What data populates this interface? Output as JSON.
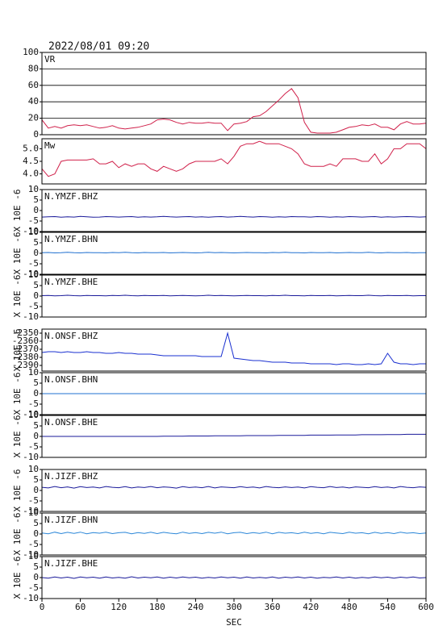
{
  "chart_data": {
    "type": "line",
    "title": "2022/08/01 09:20",
    "xlabel": "SEC",
    "x": [
      0,
      10,
      20,
      30,
      40,
      50,
      60,
      70,
      80,
      90,
      100,
      110,
      120,
      130,
      140,
      150,
      160,
      170,
      180,
      190,
      200,
      210,
      220,
      230,
      240,
      250,
      260,
      270,
      280,
      290,
      300,
      310,
      320,
      330,
      340,
      350,
      360,
      370,
      380,
      390,
      400,
      410,
      420,
      430,
      440,
      450,
      460,
      470,
      480,
      490,
      500,
      510,
      520,
      530,
      540,
      550,
      560,
      570,
      580,
      590,
      600
    ],
    "xlim": [
      0,
      600
    ],
    "xticks": [
      0,
      60,
      120,
      180,
      240,
      300,
      360,
      420,
      480,
      540,
      600
    ],
    "panels": [
      {
        "ylim": [
          0,
          100
        ],
        "yticks": [
          0,
          20,
          40,
          60,
          80,
          100
        ],
        "grid": true,
        "series": [
          {
            "name": "VR",
            "color": "#d0204a",
            "values": [
              18,
              8,
              10,
              8,
              11,
              12,
              11,
              12,
              10,
              8,
              9,
              11,
              8,
              7,
              8,
              9,
              11,
              13,
              18,
              19,
              18,
              15,
              13,
              15,
              14,
              14,
              15,
              14,
              14,
              5,
              13,
              14,
              16,
              22,
              23,
              28,
              35,
              42,
              50,
              56,
              45,
              15,
              3,
              2,
              2,
              2,
              3,
              6,
              9,
              10,
              12,
              11,
              13,
              9,
              9,
              6,
              13,
              16,
              13,
              13,
              14
            ]
          }
        ]
      },
      {
        "ylim": [
          3.6,
          5.4
        ],
        "yticks": [
          {
            "value": 4,
            "label": "4.0"
          },
          {
            "value": 4.5,
            "label": "4.5"
          },
          {
            "value": 5,
            "label": "5.0"
          }
        ],
        "grid": false,
        "series": [
          {
            "name": "Mw",
            "color": "#d0204a",
            "values": [
              4.2,
              3.9,
              4.0,
              4.5,
              4.55,
              4.55,
              4.55,
              4.55,
              4.6,
              4.4,
              4.4,
              4.5,
              4.25,
              4.4,
              4.3,
              4.4,
              4.4,
              4.2,
              4.1,
              4.3,
              4.2,
              4.1,
              4.2,
              4.4,
              4.5,
              4.5,
              4.5,
              4.5,
              4.6,
              4.4,
              4.7,
              5.1,
              5.2,
              5.2,
              5.3,
              5.2,
              5.2,
              5.2,
              5.1,
              5.0,
              4.8,
              4.4,
              4.3,
              4.3,
              4.3,
              4.4,
              4.3,
              4.6,
              4.6,
              4.6,
              4.5,
              4.5,
              4.8,
              4.4,
              4.6,
              5.0,
              5.0,
              5.2,
              5.2,
              5.2,
              5.0
            ]
          }
        ]
      },
      {
        "ylim": [
          -10,
          10
        ],
        "yticks": [
          -10,
          -5,
          0,
          5,
          10
        ],
        "ylabel": "X 10E -6",
        "grid": false,
        "series": [
          {
            "name": "N.YMZF.BHZ",
            "color": "#1a1a9a",
            "values": [
              -3.1,
              -3.0,
              -2.9,
              -3.2,
              -3.0,
              -3.1,
              -2.8,
              -3.0,
              -3.2,
              -3.1,
              -2.9,
              -3.0,
              -3.1,
              -3.0,
              -2.9,
              -3.2,
              -3.0,
              -3.1,
              -3.0,
              -2.8,
              -3.0,
              -3.1,
              -3.0,
              -2.9,
              -3.1,
              -3.0,
              -3.2,
              -3.0,
              -2.9,
              -3.1,
              -3.0,
              -2.8,
              -3.0,
              -3.1,
              -2.9,
              -3.0,
              -3.2,
              -3.0,
              -3.1,
              -2.9,
              -3.0,
              -3.0,
              -3.1,
              -2.9,
              -3.0,
              -3.2,
              -3.0,
              -3.1,
              -2.9,
              -3.0,
              -3.1,
              -3.0,
              -2.9,
              -3.2,
              -3.0,
              -3.1,
              -3.0,
              -2.9,
              -3.0,
              -3.1,
              -3.0
            ]
          }
        ]
      },
      {
        "ylim": [
          -10,
          10
        ],
        "yticks": [
          -10,
          -5,
          0,
          5,
          10
        ],
        "ylabel": "X 10E -6",
        "grid": false,
        "series": [
          {
            "name": "N.YMZF.BHN",
            "color": "#2070d0",
            "values": [
              0.3,
              0.4,
              0.2,
              0.3,
              0.5,
              0.3,
              0.2,
              0.4,
              0.3,
              0.3,
              0.2,
              0.4,
              0.3,
              0.5,
              0.3,
              0.2,
              0.4,
              0.3,
              0.3,
              0.4,
              0.2,
              0.3,
              0.4,
              0.3,
              0.2,
              0.3,
              0.5,
              0.3,
              0.4,
              0.3,
              0.2,
              0.3,
              0.4,
              0.3,
              0.3,
              0.2,
              0.4,
              0.3,
              0.5,
              0.3,
              0.3,
              0.2,
              0.4,
              0.3,
              0.3,
              0.4,
              0.2,
              0.3,
              0.4,
              0.3,
              0.3,
              0.5,
              0.3,
              0.2,
              0.4,
              0.3,
              0.3,
              0.4,
              0.2,
              0.3,
              0.3
            ]
          }
        ]
      },
      {
        "ylim": [
          -10,
          10
        ],
        "yticks": [
          -10,
          -5,
          0,
          5,
          10
        ],
        "ylabel": "X 10E -6",
        "grid": false,
        "series": [
          {
            "name": "N.YMZF.BHE",
            "color": "#1a1a9a",
            "values": [
              0.2,
              0.3,
              0.1,
              0.2,
              0.4,
              0.2,
              0.1,
              0.3,
              0.2,
              0.2,
              0.1,
              0.3,
              0.2,
              0.4,
              0.2,
              0.1,
              0.3,
              0.2,
              0.2,
              0.3,
              0.1,
              0.2,
              0.3,
              0.2,
              0.1,
              0.2,
              0.4,
              0.2,
              0.3,
              0.2,
              0.1,
              0.2,
              0.3,
              0.2,
              0.2,
              0.1,
              0.3,
              0.2,
              0.4,
              0.2,
              0.2,
              0.1,
              0.3,
              0.2,
              0.2,
              0.3,
              0.1,
              0.2,
              0.3,
              0.2,
              0.2,
              0.4,
              0.2,
              0.1,
              0.3,
              0.2,
              0.2,
              0.3,
              0.1,
              0.2,
              0.2
            ]
          }
        ]
      },
      {
        "ylim": [
          -2397,
          -2345
        ],
        "yticks": [
          -2390,
          -2380,
          -2370,
          -2360,
          -2350
        ],
        "ylabel": "X 10E -6",
        "grid": false,
        "series": [
          {
            "name": "N.ONSF.BHZ",
            "color": "#1a30d0",
            "values": [
              -2374,
              -2373,
              -2373,
              -2374,
              -2373,
              -2374,
              -2374,
              -2373,
              -2374,
              -2374,
              -2375,
              -2375,
              -2374,
              -2375,
              -2375,
              -2376,
              -2376,
              -2376,
              -2377,
              -2378,
              -2378,
              -2378,
              -2378,
              -2378,
              -2378,
              -2379,
              -2379,
              -2379,
              -2379,
              -2350,
              -2381,
              -2382,
              -2383,
              -2384,
              -2384,
              -2385,
              -2386,
              -2386,
              -2386,
              -2387,
              -2387,
              -2387,
              -2388,
              -2388,
              -2388,
              -2388,
              -2389,
              -2388,
              -2388,
              -2389,
              -2389,
              -2388,
              -2389,
              -2388,
              -2375,
              -2386,
              -2388,
              -2388,
              -2389,
              -2388,
              -2388
            ]
          }
        ]
      },
      {
        "ylim": [
          -10,
          10
        ],
        "yticks": [
          -10,
          -5,
          0,
          5,
          10
        ],
        "ylabel": "X 10E -6",
        "grid": false,
        "series": [
          {
            "name": "N.ONSF.BHN",
            "color": "#2070d0",
            "values": [
              0,
              0,
              0,
              0,
              0,
              0,
              0,
              0,
              0,
              0,
              0,
              0,
              0,
              0,
              0,
              0,
              0,
              0,
              0,
              0,
              0,
              0,
              0,
              0,
              0,
              0,
              0,
              0,
              0,
              0,
              0,
              0,
              0,
              0,
              0,
              0,
              0,
              0,
              0,
              0,
              0,
              0,
              0,
              0,
              0,
              0,
              0,
              0,
              0,
              0,
              0,
              0,
              0,
              0,
              0,
              0,
              0,
              0,
              0,
              0,
              0
            ]
          }
        ]
      },
      {
        "ylim": [
          -10,
          10
        ],
        "yticks": [
          -10,
          -5,
          0,
          5,
          10
        ],
        "ylabel": "X 10E -6",
        "grid": false,
        "series": [
          {
            "name": "N.ONSF.BHE",
            "color": "#1a1a9a",
            "values": [
              0,
              0,
              0,
              0,
              0,
              0,
              0,
              0,
              0,
              0,
              0,
              0,
              0,
              0,
              0,
              0,
              0,
              0,
              0,
              0.1,
              0.1,
              0.1,
              0.1,
              0.2,
              0.2,
              0.2,
              0.2,
              0.3,
              0.3,
              0.3,
              0.3,
              0.3,
              0.4,
              0.4,
              0.4,
              0.4,
              0.4,
              0.5,
              0.5,
              0.5,
              0.5,
              0.5,
              0.6,
              0.6,
              0.6,
              0.6,
              0.7,
              0.7,
              0.7,
              0.7,
              0.8,
              0.8,
              0.8,
              0.8,
              0.9,
              0.9,
              0.9,
              1.0,
              1.0,
              1.0,
              1.0
            ]
          }
        ]
      },
      {
        "ylim": [
          -10,
          10
        ],
        "yticks": [
          -10,
          -5,
          0,
          5,
          10
        ],
        "ylabel": "X 10E -6",
        "grid": false,
        "series": [
          {
            "name": "N.JIZF.BHZ",
            "color": "#1a1a9a",
            "values": [
              1.5,
              1.2,
              1.9,
              1.3,
              1.7,
              1.1,
              1.8,
              1.4,
              1.6,
              1.2,
              1.9,
              1.5,
              1.3,
              1.8,
              1.2,
              1.6,
              1.4,
              1.9,
              1.3,
              1.7,
              1.5,
              1.1,
              1.8,
              1.4,
              1.6,
              1.3,
              1.9,
              1.2,
              1.7,
              1.5,
              1.3,
              1.8,
              1.4,
              1.6,
              1.2,
              1.9,
              1.5,
              1.3,
              1.7,
              1.4,
              1.6,
              1.2,
              1.8,
              1.5,
              1.3,
              1.9,
              1.4,
              1.6,
              1.2,
              1.7,
              1.5,
              1.3,
              1.8,
              1.4,
              1.6,
              1.2,
              1.9,
              1.5,
              1.3,
              1.7,
              1.5
            ]
          }
        ]
      },
      {
        "ylim": [
          -10,
          10
        ],
        "yticks": [
          -10,
          -5,
          0,
          5,
          10
        ],
        "ylabel": "X 10E -6",
        "grid": false,
        "series": [
          {
            "name": "N.JIZF.BHN",
            "color": "#2a86d8",
            "values": [
              0.5,
              0.1,
              0.9,
              0.2,
              0.8,
              0.3,
              0.9,
              0.1,
              0.7,
              0.4,
              0.9,
              0.2,
              0.6,
              0.8,
              0.1,
              0.7,
              0.3,
              0.9,
              0.2,
              0.8,
              0.4,
              0.1,
              0.9,
              0.3,
              0.7,
              0.2,
              0.8,
              0.4,
              0.9,
              0.1,
              0.6,
              0.8,
              0.2,
              0.7,
              0.3,
              0.9,
              0.1,
              0.8,
              0.4,
              0.6,
              0.2,
              0.9,
              0.3,
              0.7,
              0.1,
              0.8,
              0.5,
              0.2,
              0.9,
              0.4,
              0.6,
              0.1,
              0.8,
              0.3,
              0.7,
              0.2,
              0.9,
              0.4,
              0.6,
              0.2,
              0.5
            ]
          }
        ]
      },
      {
        "ylim": [
          -10,
          10
        ],
        "yticks": [
          -10,
          -5,
          0,
          5,
          10
        ],
        "ylabel": "X 10E -6",
        "grid": false,
        "series": [
          {
            "name": "N.JIZF.BHE",
            "color": "#1a1a9a",
            "values": [
              0,
              -0.3,
              0.3,
              -0.2,
              0.2,
              -0.4,
              0.3,
              -0.1,
              0.2,
              -0.3,
              0.3,
              -0.2,
              0.1,
              -0.3,
              0.4,
              -0.2,
              0.2,
              -0.1,
              0.3,
              -0.3,
              0.2,
              -0.2,
              0.3,
              -0.1,
              0.2,
              -0.3,
              0.1,
              -0.2,
              0.3,
              -0.1,
              0.2,
              -0.3,
              0.3,
              -0.2,
              0.1,
              -0.2,
              0.3,
              -0.3,
              0.2,
              -0.1,
              0.3,
              -0.2,
              0.2,
              -0.3,
              0.1,
              -0.1,
              0.3,
              -0.2,
              0.2,
              -0.3,
              0.1,
              -0.2,
              0.3,
              -0.1,
              0.2,
              -0.3,
              0.2,
              -0.1,
              0.3,
              -0.2,
              0
            ]
          }
        ]
      }
    ]
  }
}
